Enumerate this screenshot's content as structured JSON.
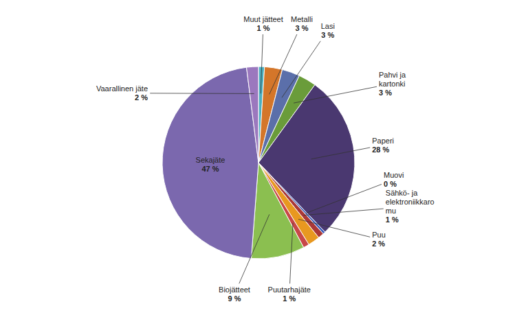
{
  "chart_data": {
    "type": "pie",
    "categories": [
      "Muut jätteet",
      "Metalli",
      "Lasi",
      "Pahvi ja\nkartonki",
      "Paperi",
      "Muovi",
      "Sähkö- ja\nelektroniikkaro\nmu",
      "Puu",
      "Puutarhajäte",
      "Biojätteet",
      "Sekajäte",
      "Vaarallinen jäte"
    ],
    "values": [
      1,
      3,
      3,
      3,
      28,
      0.4,
      1,
      2,
      1,
      9,
      47,
      2
    ],
    "value_labels": [
      "1 %",
      "3 %",
      "3 %",
      "3 %",
      "28 %",
      "0 %",
      "1 %",
      "2 %",
      "1 %",
      "9 %",
      "47 %",
      "2 %"
    ],
    "colors": [
      "#4BAFC0",
      "#D4762A",
      "#5B6FAA",
      "#6A9C3A",
      "#4A3870",
      "#3A5AB8",
      "#AA3838",
      "#E89820",
      "#C84848",
      "#8BBF50",
      "#7B68AE",
      "#9B78BE"
    ],
    "data_labels": true
  }
}
